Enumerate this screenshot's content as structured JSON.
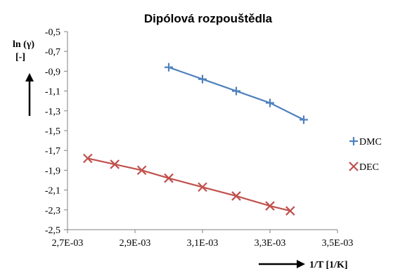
{
  "chart_data": {
    "type": "scatter",
    "title": "Dipólová rozpouštědla",
    "ylabel_line1": "ln (γ)",
    "ylabel_line2": "[-]",
    "xlabel": "1/T [1/K]",
    "xlim": [
      0.0027,
      0.0035
    ],
    "ylim": [
      -2.5,
      -0.5
    ],
    "x_ticks": [
      "2,7E-03",
      "2,9E-03",
      "3,1E-03",
      "3,3E-03",
      "3,5E-03"
    ],
    "y_ticks": [
      "-0,5",
      "-0,7",
      "-0,9",
      "-1,1",
      "-1,3",
      "-1,5",
      "-1,7",
      "-1,9",
      "-2,1",
      "-2,3",
      "-2,5"
    ],
    "grid": false,
    "legend_position": "right",
    "series": [
      {
        "name": "DMC",
        "marker": "plus",
        "color": "#4f81bd",
        "x": [
          0.003,
          0.0031,
          0.0032,
          0.0033,
          0.0034
        ],
        "y": [
          -0.86,
          -0.98,
          -1.1,
          -1.22,
          -1.39
        ]
      },
      {
        "name": "DEC",
        "marker": "x",
        "color": "#c0504d",
        "x": [
          0.00276,
          0.00284,
          0.00292,
          0.003,
          0.0031,
          0.0032,
          0.0033,
          0.00336
        ],
        "y": [
          -1.78,
          -1.84,
          -1.9,
          -1.98,
          -2.07,
          -2.16,
          -2.26,
          -2.31
        ]
      }
    ]
  }
}
